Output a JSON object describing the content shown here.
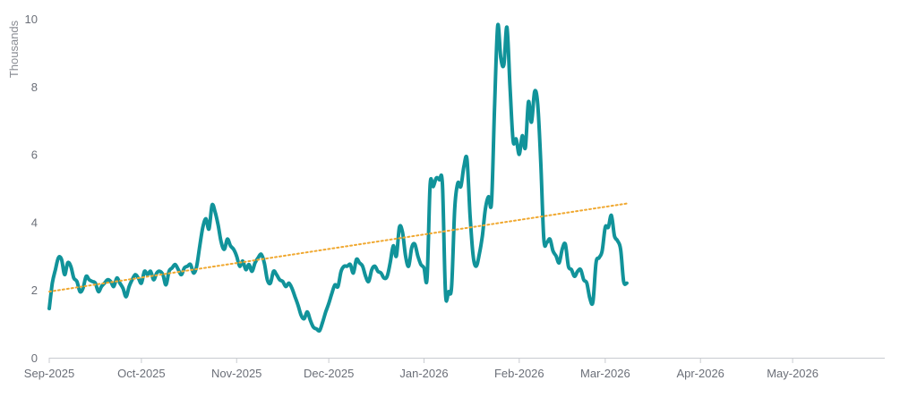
{
  "chart_data": {
    "type": "line",
    "ylabel": "Thousands",
    "ylim": [
      0,
      10
    ],
    "yticks": [
      0,
      2,
      4,
      6,
      8,
      10
    ],
    "xlim": [
      "2025-09-01",
      "2026-05-31"
    ],
    "xticks": [
      {
        "date": "2025-09-01",
        "label": "Sep-2025"
      },
      {
        "date": "2025-10-01",
        "label": "Oct-2025"
      },
      {
        "date": "2025-11-01",
        "label": "Nov-2025"
      },
      {
        "date": "2025-12-01",
        "label": "Dec-2025"
      },
      {
        "date": "2026-01-01",
        "label": "Jan-2026"
      },
      {
        "date": "2026-02-01",
        "label": "Feb-2026"
      },
      {
        "date": "2026-03-01",
        "label": "Mar-2026"
      },
      {
        "date": "2026-04-01",
        "label": "Apr-2026"
      },
      {
        "date": "2026-05-01",
        "label": "May-2026"
      }
    ],
    "grid": false,
    "series": [
      {
        "color": "#11939a",
        "style": "solid",
        "points": [
          [
            "2025-09-01",
            1.45
          ],
          [
            "2025-09-02",
            2.2
          ],
          [
            "2025-09-03",
            2.6
          ],
          [
            "2025-09-04",
            2.95
          ],
          [
            "2025-09-05",
            2.9
          ],
          [
            "2025-09-06",
            2.45
          ],
          [
            "2025-09-07",
            2.8
          ],
          [
            "2025-09-08",
            2.7
          ],
          [
            "2025-09-09",
            2.35
          ],
          [
            "2025-09-10",
            2.25
          ],
          [
            "2025-09-11",
            1.95
          ],
          [
            "2025-09-12",
            2.05
          ],
          [
            "2025-09-13",
            2.4
          ],
          [
            "2025-09-14",
            2.3
          ],
          [
            "2025-09-15",
            2.25
          ],
          [
            "2025-09-16",
            2.2
          ],
          [
            "2025-09-17",
            1.95
          ],
          [
            "2025-09-18",
            2.1
          ],
          [
            "2025-09-19",
            2.2
          ],
          [
            "2025-09-20",
            2.3
          ],
          [
            "2025-09-21",
            2.25
          ],
          [
            "2025-09-22",
            2.1
          ],
          [
            "2025-09-23",
            2.35
          ],
          [
            "2025-09-24",
            2.2
          ],
          [
            "2025-09-25",
            2.05
          ],
          [
            "2025-09-26",
            1.8
          ],
          [
            "2025-09-27",
            2.1
          ],
          [
            "2025-09-28",
            2.3
          ],
          [
            "2025-09-29",
            2.45
          ],
          [
            "2025-09-30",
            2.35
          ],
          [
            "2025-10-01",
            2.2
          ],
          [
            "2025-10-02",
            2.55
          ],
          [
            "2025-10-03",
            2.45
          ],
          [
            "2025-10-04",
            2.55
          ],
          [
            "2025-10-05",
            2.3
          ],
          [
            "2025-10-06",
            2.5
          ],
          [
            "2025-10-07",
            2.55
          ],
          [
            "2025-10-08",
            2.45
          ],
          [
            "2025-10-09",
            2.15
          ],
          [
            "2025-10-10",
            2.55
          ],
          [
            "2025-10-11",
            2.65
          ],
          [
            "2025-10-12",
            2.75
          ],
          [
            "2025-10-13",
            2.6
          ],
          [
            "2025-10-14",
            2.45
          ],
          [
            "2025-10-15",
            2.65
          ],
          [
            "2025-10-16",
            2.7
          ],
          [
            "2025-10-17",
            2.75
          ],
          [
            "2025-10-18",
            2.5
          ],
          [
            "2025-10-19",
            2.7
          ],
          [
            "2025-10-20",
            3.3
          ],
          [
            "2025-10-21",
            3.85
          ],
          [
            "2025-10-22",
            4.1
          ],
          [
            "2025-10-23",
            3.8
          ],
          [
            "2025-10-24",
            4.5
          ],
          [
            "2025-10-25",
            4.3
          ],
          [
            "2025-10-26",
            3.9
          ],
          [
            "2025-10-27",
            3.4
          ],
          [
            "2025-10-28",
            3.2
          ],
          [
            "2025-10-29",
            3.5
          ],
          [
            "2025-10-30",
            3.3
          ],
          [
            "2025-10-31",
            3.2
          ],
          [
            "2025-11-01",
            3.0
          ],
          [
            "2025-11-02",
            2.7
          ],
          [
            "2025-11-03",
            2.85
          ],
          [
            "2025-11-04",
            2.6
          ],
          [
            "2025-11-05",
            2.75
          ],
          [
            "2025-11-06",
            2.55
          ],
          [
            "2025-11-07",
            2.8
          ],
          [
            "2025-11-08",
            2.95
          ],
          [
            "2025-11-09",
            3.05
          ],
          [
            "2025-11-10",
            2.8
          ],
          [
            "2025-11-11",
            2.3
          ],
          [
            "2025-11-12",
            2.2
          ],
          [
            "2025-11-13",
            2.55
          ],
          [
            "2025-11-14",
            2.45
          ],
          [
            "2025-11-15",
            2.3
          ],
          [
            "2025-11-16",
            2.25
          ],
          [
            "2025-11-17",
            2.1
          ],
          [
            "2025-11-18",
            2.2
          ],
          [
            "2025-11-19",
            2.05
          ],
          [
            "2025-11-20",
            1.8
          ],
          [
            "2025-11-21",
            1.55
          ],
          [
            "2025-11-22",
            1.25
          ],
          [
            "2025-11-23",
            1.15
          ],
          [
            "2025-11-24",
            1.35
          ],
          [
            "2025-11-25",
            1.1
          ],
          [
            "2025-11-26",
            0.9
          ],
          [
            "2025-11-27",
            0.85
          ],
          [
            "2025-11-28",
            0.8
          ],
          [
            "2025-11-29",
            1.05
          ],
          [
            "2025-11-30",
            1.35
          ],
          [
            "2025-12-01",
            1.6
          ],
          [
            "2025-12-02",
            1.9
          ],
          [
            "2025-12-03",
            2.15
          ],
          [
            "2025-12-04",
            2.1
          ],
          [
            "2025-12-05",
            2.55
          ],
          [
            "2025-12-06",
            2.7
          ],
          [
            "2025-12-07",
            2.7
          ],
          [
            "2025-12-08",
            2.75
          ],
          [
            "2025-12-09",
            2.5
          ],
          [
            "2025-12-10",
            2.9
          ],
          [
            "2025-12-11",
            2.8
          ],
          [
            "2025-12-12",
            2.7
          ],
          [
            "2025-12-13",
            2.4
          ],
          [
            "2025-12-14",
            2.25
          ],
          [
            "2025-12-15",
            2.6
          ],
          [
            "2025-12-16",
            2.7
          ],
          [
            "2025-12-17",
            2.55
          ],
          [
            "2025-12-18",
            2.5
          ],
          [
            "2025-12-19",
            2.35
          ],
          [
            "2025-12-20",
            2.4
          ],
          [
            "2025-12-21",
            2.8
          ],
          [
            "2025-12-22",
            3.3
          ],
          [
            "2025-12-23",
            3.0
          ],
          [
            "2025-12-24",
            3.85
          ],
          [
            "2025-12-25",
            3.7
          ],
          [
            "2025-12-26",
            3.0
          ],
          [
            "2025-12-27",
            2.7
          ],
          [
            "2025-12-28",
            3.25
          ],
          [
            "2025-12-29",
            3.35
          ],
          [
            "2025-12-30",
            3.0
          ],
          [
            "2025-12-31",
            2.75
          ],
          [
            "2026-01-01",
            2.65
          ],
          [
            "2026-01-02",
            2.35
          ],
          [
            "2026-01-03",
            5.1
          ],
          [
            "2026-01-04",
            5.05
          ],
          [
            "2026-01-05",
            5.3
          ],
          [
            "2026-01-06",
            5.25
          ],
          [
            "2026-01-07",
            5.1
          ],
          [
            "2026-01-08",
            1.9
          ],
          [
            "2026-01-09",
            1.95
          ],
          [
            "2026-01-10",
            2.1
          ],
          [
            "2026-01-11",
            4.4
          ],
          [
            "2026-01-12",
            5.15
          ],
          [
            "2026-01-13",
            5.05
          ],
          [
            "2026-01-14",
            5.65
          ],
          [
            "2026-01-15",
            5.85
          ],
          [
            "2026-01-16",
            4.2
          ],
          [
            "2026-01-17",
            3.0
          ],
          [
            "2026-01-18",
            2.7
          ],
          [
            "2026-01-19",
            3.05
          ],
          [
            "2026-01-20",
            3.6
          ],
          [
            "2026-01-21",
            4.4
          ],
          [
            "2026-01-22",
            4.75
          ],
          [
            "2026-01-23",
            4.6
          ],
          [
            "2026-01-24",
            7.5
          ],
          [
            "2026-01-25",
            9.8
          ],
          [
            "2026-01-26",
            8.85
          ],
          [
            "2026-01-27",
            8.65
          ],
          [
            "2026-01-28",
            9.75
          ],
          [
            "2026-01-29",
            8.0
          ],
          [
            "2026-01-30",
            6.4
          ],
          [
            "2026-01-31",
            6.45
          ],
          [
            "2026-02-01",
            6.0
          ],
          [
            "2026-02-02",
            6.55
          ],
          [
            "2026-02-03",
            6.2
          ],
          [
            "2026-02-04",
            7.55
          ],
          [
            "2026-02-05",
            6.95
          ],
          [
            "2026-02-06",
            7.85
          ],
          [
            "2026-02-07",
            7.5
          ],
          [
            "2026-02-08",
            5.8
          ],
          [
            "2026-02-09",
            3.5
          ],
          [
            "2026-02-10",
            3.4
          ],
          [
            "2026-02-11",
            3.5
          ],
          [
            "2026-02-12",
            3.15
          ],
          [
            "2026-02-13",
            3.0
          ],
          [
            "2026-02-14",
            2.8
          ],
          [
            "2026-02-15",
            3.2
          ],
          [
            "2026-02-16",
            3.35
          ],
          [
            "2026-02-17",
            2.7
          ],
          [
            "2026-02-18",
            2.6
          ],
          [
            "2026-02-19",
            2.4
          ],
          [
            "2026-02-20",
            2.55
          ],
          [
            "2026-02-21",
            2.6
          ],
          [
            "2026-02-22",
            2.3
          ],
          [
            "2026-02-23",
            2.2
          ],
          [
            "2026-02-24",
            1.75
          ],
          [
            "2026-02-25",
            1.65
          ],
          [
            "2026-02-26",
            2.8
          ],
          [
            "2026-02-27",
            2.95
          ],
          [
            "2026-02-28",
            3.15
          ],
          [
            "2026-03-01",
            3.85
          ],
          [
            "2026-03-02",
            3.85
          ],
          [
            "2026-03-03",
            4.2
          ],
          [
            "2026-03-04",
            3.6
          ],
          [
            "2026-03-05",
            3.45
          ],
          [
            "2026-03-06",
            3.2
          ],
          [
            "2026-03-07",
            2.25
          ],
          [
            "2026-03-08",
            2.2
          ]
        ]
      },
      {
        "color": "#f0a830",
        "style": "dotted",
        "points": [
          [
            "2025-09-01",
            1.95
          ],
          [
            "2026-03-08",
            4.55
          ]
        ]
      }
    ]
  }
}
